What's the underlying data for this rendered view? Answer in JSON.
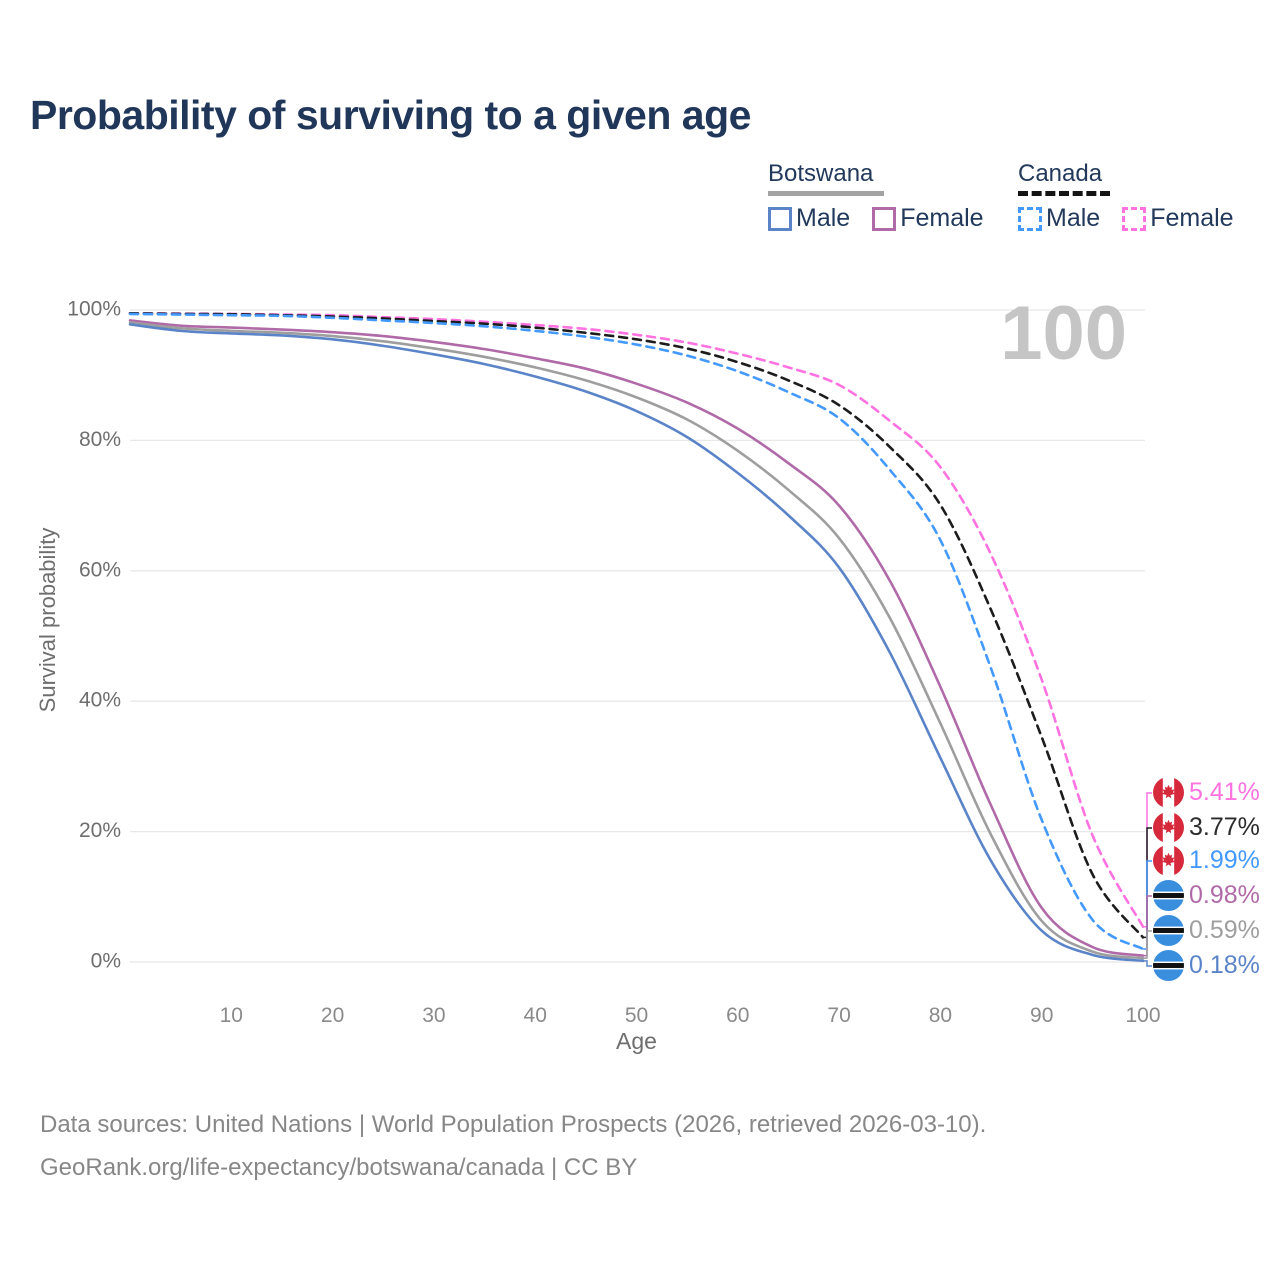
{
  "title": "Probability of surviving to a given age",
  "watermark": "100",
  "legend": {
    "groups": [
      {
        "label": "Botswana",
        "line_style": "solid",
        "underline_color": "#a3a3a3",
        "items": [
          {
            "label": "Male",
            "color": "#5b84c8"
          },
          {
            "label": "Female",
            "color": "#b06aa8"
          }
        ]
      },
      {
        "label": "Canada",
        "line_style": "dashed",
        "underline_color": "#141414",
        "items": [
          {
            "label": "Male",
            "color": "#4499ff"
          },
          {
            "label": "Female",
            "color": "#ff72e0"
          }
        ]
      }
    ]
  },
  "chart_data": {
    "type": "line",
    "title": "Probability of surviving to a given age",
    "xlabel": "Age",
    "ylabel": "Survival probability",
    "xlim": [
      0,
      100
    ],
    "ylim": [
      0,
      100
    ],
    "grid": "horizontal-only",
    "x_ticks": [
      10,
      20,
      30,
      40,
      50,
      60,
      70,
      80,
      90,
      100
    ],
    "y_ticks": [
      {
        "value": 0,
        "label": "0%"
      },
      {
        "value": 20,
        "label": "20%"
      },
      {
        "value": 40,
        "label": "40%"
      },
      {
        "value": 60,
        "label": "60%"
      },
      {
        "value": 80,
        "label": "80%"
      },
      {
        "value": 100,
        "label": "100%"
      }
    ],
    "x": [
      0,
      5,
      10,
      15,
      20,
      25,
      30,
      35,
      40,
      45,
      50,
      55,
      60,
      65,
      70,
      75,
      80,
      85,
      90,
      95,
      100
    ],
    "series": [
      {
        "name": "Canada Female",
        "country": "Canada",
        "sex": "Female",
        "color": "#ff72e0",
        "dash": true,
        "end_label": "5.41%",
        "values": [
          99.5,
          99.45,
          99.4,
          99.3,
          99.2,
          98.9,
          98.6,
          98.2,
          97.7,
          97.1,
          96.2,
          95.0,
          93.3,
          91.2,
          88.5,
          83.0,
          75.9,
          62.5,
          43.3,
          19.5,
          5.41
        ]
      },
      {
        "name": "Canada Both sexes",
        "country": "Canada",
        "sex": "Both",
        "color": "#1c1c1c",
        "dash": true,
        "end_label": "3.77%",
        "values": [
          99.5,
          99.4,
          99.35,
          99.2,
          99.0,
          98.7,
          98.3,
          97.9,
          97.3,
          96.5,
          95.5,
          94.1,
          92.0,
          89.2,
          85.4,
          79.0,
          70.1,
          54.0,
          34.5,
          13.5,
          3.77
        ]
      },
      {
        "name": "Canada Male",
        "country": "Canada",
        "sex": "Male",
        "color": "#4499ff",
        "dash": true,
        "end_label": "1.99%",
        "values": [
          99.4,
          99.3,
          99.2,
          99.1,
          98.8,
          98.4,
          98.0,
          97.5,
          96.8,
          95.9,
          94.7,
          93.0,
          90.6,
          87.4,
          83.4,
          75.5,
          64.7,
          45.0,
          21.8,
          6.5,
          1.99
        ]
      },
      {
        "name": "Botswana Female",
        "country": "Botswana",
        "sex": "Female",
        "color": "#b06aa8",
        "dash": false,
        "end_label": "0.98%",
        "values": [
          98.4,
          97.6,
          97.3,
          97.0,
          96.6,
          96.0,
          95.1,
          94.0,
          92.6,
          91.0,
          88.7,
          85.8,
          81.8,
          76.5,
          70.0,
          58.5,
          42.2,
          24.0,
          8.3,
          2.3,
          0.98
        ]
      },
      {
        "name": "Botswana Both sexes",
        "country": "Botswana",
        "sex": "Both",
        "color": "#9e9e9e",
        "dash": false,
        "end_label": "0.59%",
        "values": [
          98.1,
          97.2,
          96.8,
          96.5,
          96.0,
          95.2,
          94.1,
          92.8,
          91.2,
          89.2,
          86.6,
          83.2,
          78.4,
          72.4,
          65.0,
          52.8,
          36.6,
          19.5,
          6.3,
          1.6,
          0.59
        ]
      },
      {
        "name": "Botswana Male",
        "country": "Botswana",
        "sex": "Male",
        "color": "#5b84c8",
        "dash": false,
        "end_label": "0.18%",
        "values": [
          97.8,
          96.8,
          96.4,
          96.1,
          95.5,
          94.5,
          93.2,
          91.7,
          89.8,
          87.5,
          84.5,
          80.5,
          75.0,
          68.5,
          60.5,
          47.5,
          31.3,
          15.5,
          4.8,
          1.1,
          0.18
        ]
      }
    ]
  },
  "end_labels": [
    {
      "flag": "canada",
      "value": "5.41%",
      "color": "#ff72e0"
    },
    {
      "flag": "canada",
      "value": "3.77%",
      "color": "#2b2b2b"
    },
    {
      "flag": "canada",
      "value": "1.99%",
      "color": "#4499ff"
    },
    {
      "flag": "botswana",
      "value": "0.98%",
      "color": "#b06aa8"
    },
    {
      "flag": "botswana",
      "value": "0.59%",
      "color": "#9e9e9e"
    },
    {
      "flag": "botswana",
      "value": "0.18%",
      "color": "#5b84c8"
    }
  ],
  "flag_colors": {
    "canada_red": "#d6293c",
    "botswana_blue": "#3a8ede",
    "botswana_black": "#111111"
  },
  "footer": {
    "line1": "Data sources: United Nations | World Population Prospects (2026, retrieved 2026-03-10).",
    "line2": "GeoRank.org/life-expectancy/botswana/canada | CC BY"
  }
}
